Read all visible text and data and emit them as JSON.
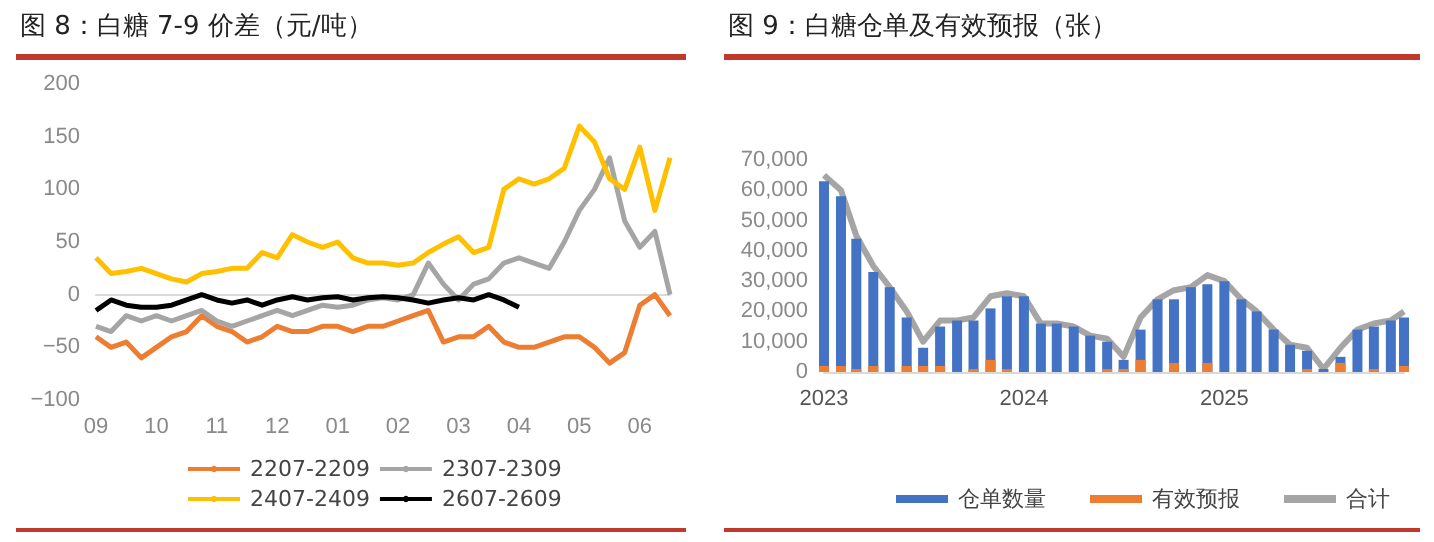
{
  "chart_data": [
    {
      "type": "line",
      "title": "图 8：白糖 7-9 价差（元/吨）",
      "categories": [
        "09",
        null,
        null,
        null,
        "10",
        null,
        null,
        null,
        "11",
        null,
        null,
        null,
        "12",
        null,
        null,
        null,
        "01",
        null,
        null,
        null,
        "02",
        null,
        null,
        null,
        "03",
        null,
        null,
        null,
        "04",
        null,
        null,
        null,
        "05",
        null,
        null,
        null,
        "06",
        null,
        null
      ],
      "series": [
        {
          "name": "2207-2209",
          "color": "#ed7d31",
          "values": [
            -40,
            -50,
            -45,
            -60,
            -50,
            -40,
            -35,
            -20,
            -30,
            -35,
            -45,
            -40,
            -30,
            -35,
            -35,
            -30,
            -30,
            -35,
            -30,
            -30,
            -25,
            -20,
            -15,
            -45,
            -40,
            -40,
            -30,
            -45,
            -50,
            -50,
            -45,
            -40,
            -40,
            -50,
            -65,
            -55,
            -10,
            0,
            -20
          ]
        },
        {
          "name": "2307-2309",
          "color": "#a5a5a5",
          "values": [
            -30,
            -35,
            -20,
            -25,
            -20,
            -25,
            -20,
            -15,
            -25,
            -30,
            -25,
            -20,
            -15,
            -20,
            -15,
            -10,
            -12,
            -10,
            -5,
            -3,
            -5,
            0,
            30,
            10,
            -5,
            10,
            15,
            30,
            35,
            30,
            25,
            50,
            80,
            100,
            130,
            70,
            45,
            60,
            0
          ]
        },
        {
          "name": "2407-2409",
          "color": "#ffc000",
          "values": [
            35,
            20,
            22,
            25,
            20,
            15,
            12,
            20,
            22,
            25,
            25,
            40,
            35,
            57,
            50,
            45,
            50,
            35,
            30,
            30,
            28,
            30,
            40,
            48,
            55,
            40,
            45,
            100,
            110,
            105,
            110,
            120,
            160,
            145,
            110,
            100,
            140,
            80,
            130
          ]
        },
        {
          "name": "2607-2609",
          "color": "#000000",
          "values": [
            -15,
            -5,
            -10,
            -12,
            -12,
            -10,
            -5,
            0,
            -5,
            -8,
            -5,
            -10,
            -5,
            -2,
            -5,
            -3,
            -2,
            -5,
            -3,
            -2,
            -3,
            -5,
            -8,
            -5,
            -3,
            -5,
            0,
            -5,
            -12,
            null,
            null,
            null,
            null,
            null,
            null,
            null,
            null,
            null,
            null
          ]
        }
      ],
      "ylim": [
        -100,
        200
      ],
      "yticks": [
        {
          "value": -100,
          "label": "−100"
        },
        {
          "value": -50,
          "label": "−50"
        },
        0,
        50,
        100,
        150,
        200
      ],
      "legend": "bottom"
    },
    {
      "type": "bar",
      "title": "图 9：白糖仓单及有效预报（张）",
      "x": [
        "2023-01-01",
        "2023-02-01",
        "2023-03-01",
        "2023-04-01",
        "2023-05-01",
        "2023-06-01",
        "2023-07-01",
        "2023-08-01",
        "2023-09-01",
        "2023-10-01",
        "2023-11-01",
        "2023-12-01",
        "2024-01-01",
        "2024-02-01",
        "2024-03-01",
        "2024-04-01",
        "2024-05-01",
        "2024-06-01",
        "2024-07-01",
        "2024-08-01",
        "2024-09-01",
        "2024-10-01",
        "2024-11-01",
        "2024-12-01",
        "2025-01-01",
        "2025-02-01",
        "2025-03-01",
        "2025-04-01",
        "2025-05-01",
        "2025-06-01",
        "2025-07-01",
        "2025-08-01",
        "2025-09-01",
        "2025-10-01",
        "2025-11-01",
        "2025-11-25"
      ],
      "series": [
        {
          "name": "仓单数量",
          "type": "bar",
          "color": "#4472c4",
          "values": [
            63000,
            58000,
            44000,
            33000,
            28000,
            18000,
            8000,
            15000,
            17000,
            17000,
            21000,
            25000,
            25000,
            16000,
            16000,
            15000,
            12000,
            10000,
            4000,
            14000,
            24000,
            24000,
            28000,
            29000,
            30000,
            24000,
            20000,
            14000,
            9000,
            7000,
            1000,
            5000,
            14000,
            15000,
            17000,
            18000
          ]
        },
        {
          "name": "有效预报",
          "type": "bar",
          "color": "#ed7d31",
          "values": [
            2000,
            2000,
            1000,
            2000,
            0,
            2000,
            2000,
            2000,
            0,
            1000,
            4000,
            1000,
            0,
            0,
            0,
            0,
            0,
            1000,
            1000,
            4000,
            0,
            3000,
            0,
            3000,
            0,
            0,
            0,
            0,
            0,
            1000,
            0,
            3000,
            0,
            1000,
            0,
            2000
          ]
        },
        {
          "name": "合计",
          "type": "line",
          "color": "#a5a5a5",
          "values": [
            65000,
            60000,
            45000,
            35000,
            28000,
            20000,
            10000,
            17000,
            17000,
            18000,
            25000,
            26000,
            25000,
            16000,
            16000,
            15000,
            12000,
            11000,
            5000,
            18000,
            24000,
            27000,
            28000,
            32000,
            30000,
            24000,
            20000,
            14000,
            9000,
            8000,
            1000,
            8000,
            14000,
            16000,
            17000,
            20000
          ]
        }
      ],
      "xlim": [
        "2023-01-01",
        "2025-11-25"
      ],
      "xticks": [
        {
          "value": "2023-01-01",
          "label": "2023"
        },
        {
          "value": "2024-01-01",
          "label": "2024"
        },
        {
          "value": "2025-01-01",
          "label": "2025"
        }
      ],
      "ylim": [
        0,
        70000
      ],
      "yticks": [
        0,
        {
          "value": 10000,
          "label": "10,000"
        },
        {
          "value": 20000,
          "label": "20,000"
        },
        {
          "value": 30000,
          "label": "30,000"
        },
        {
          "value": 40000,
          "label": "40,000"
        },
        {
          "value": 50000,
          "label": "50,000"
        },
        {
          "value": 60000,
          "label": "60,000"
        },
        {
          "value": 70000,
          "label": "70,000"
        }
      ],
      "legend": "bottom"
    }
  ]
}
